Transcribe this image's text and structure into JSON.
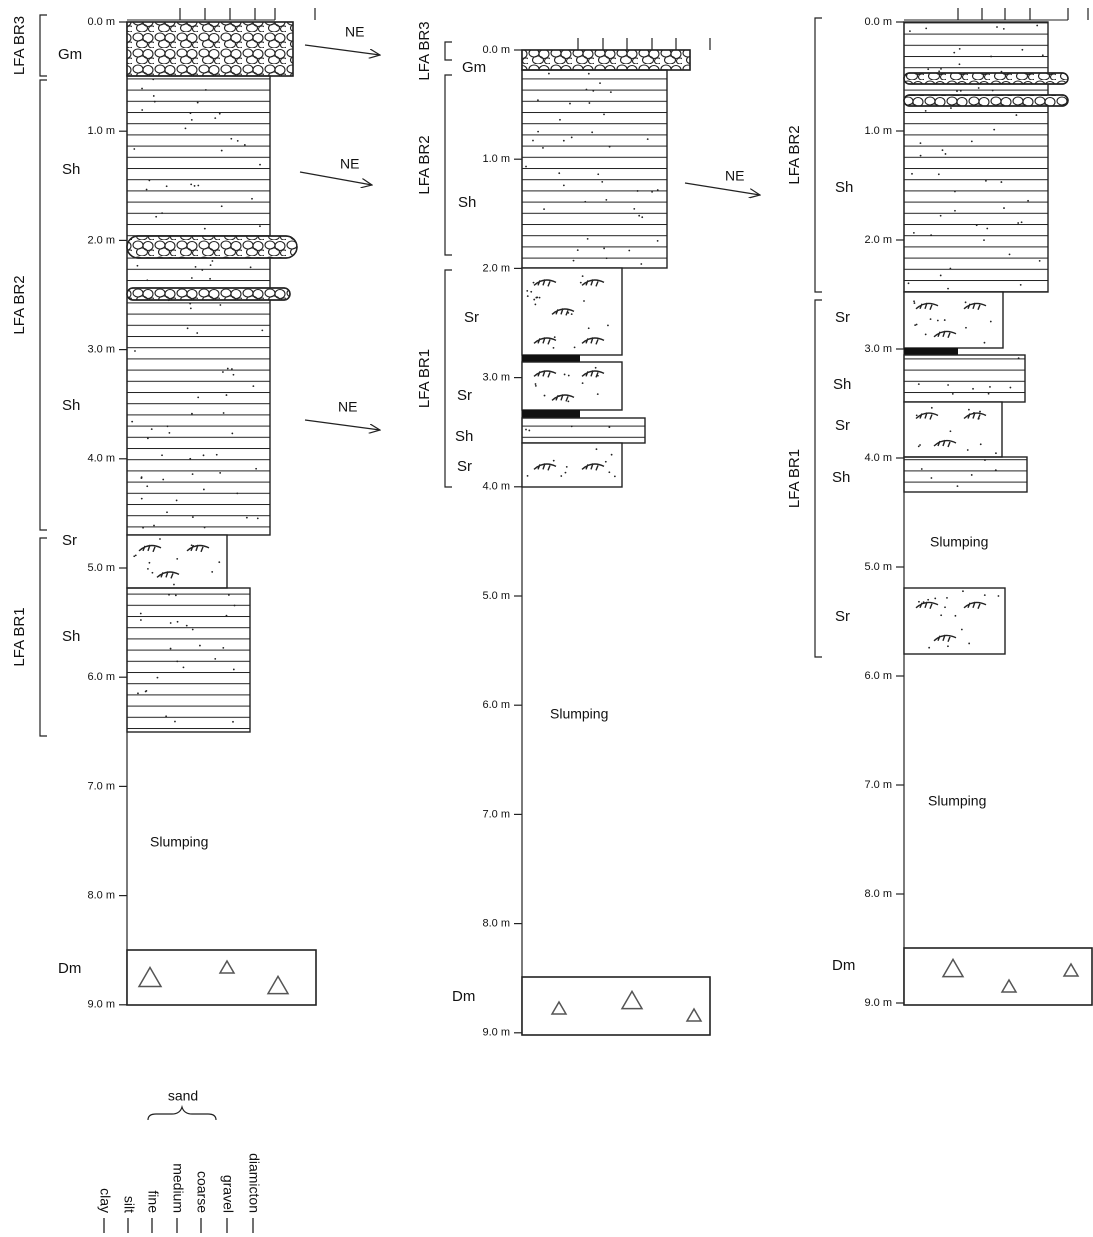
{
  "columns": [
    {
      "depths": [
        "0.0 m",
        "1.0 m",
        "2.0 m",
        "3.0 m",
        "4.0 m",
        "5.0 m",
        "6.0 m",
        "7.0 m",
        "8.0 m",
        "9.0 m"
      ],
      "lfa": [
        "LFA BR3",
        "LFA BR2",
        "LFA BR1"
      ],
      "facies": [
        "Gm",
        "Sh",
        "Sh",
        "Sr",
        "Sh",
        "Dm"
      ],
      "notes": [
        "NE",
        "NE",
        "NE",
        "Slumping"
      ]
    },
    {
      "depths": [
        "0.0 m",
        "1.0 m",
        "2.0 m",
        "3.0 m",
        "4.0 m",
        "5.0 m",
        "6.0 m",
        "7.0 m",
        "8.0 m",
        "9.0 m"
      ],
      "lfa": [
        "LFA BR3",
        "LFA BR2",
        "LFA BR1"
      ],
      "facies": [
        "Gm",
        "Sh",
        "Sr",
        "Sr",
        "Sh",
        "Sr",
        "Dm"
      ],
      "notes": [
        "NE",
        "Slumping"
      ]
    },
    {
      "depths": [
        "0.0 m",
        "1.0 m",
        "2.0 m",
        "3.0 m",
        "4.0 m",
        "5.0 m",
        "6.0 m",
        "7.0 m",
        "8.0 m",
        "9.0 m"
      ],
      "lfa": [
        "LFA BR2",
        "LFA BR1"
      ],
      "facies": [
        "Sh",
        "Sr",
        "Sh",
        "Sr",
        "Sh",
        "Sr",
        "Dm"
      ],
      "notes": [
        "Slumping",
        "Slumping"
      ]
    }
  ],
  "legend": {
    "group": "sand",
    "classes": [
      "clay",
      "silt",
      "fine",
      "medium",
      "coarse",
      "gravel",
      "diamicton"
    ]
  }
}
